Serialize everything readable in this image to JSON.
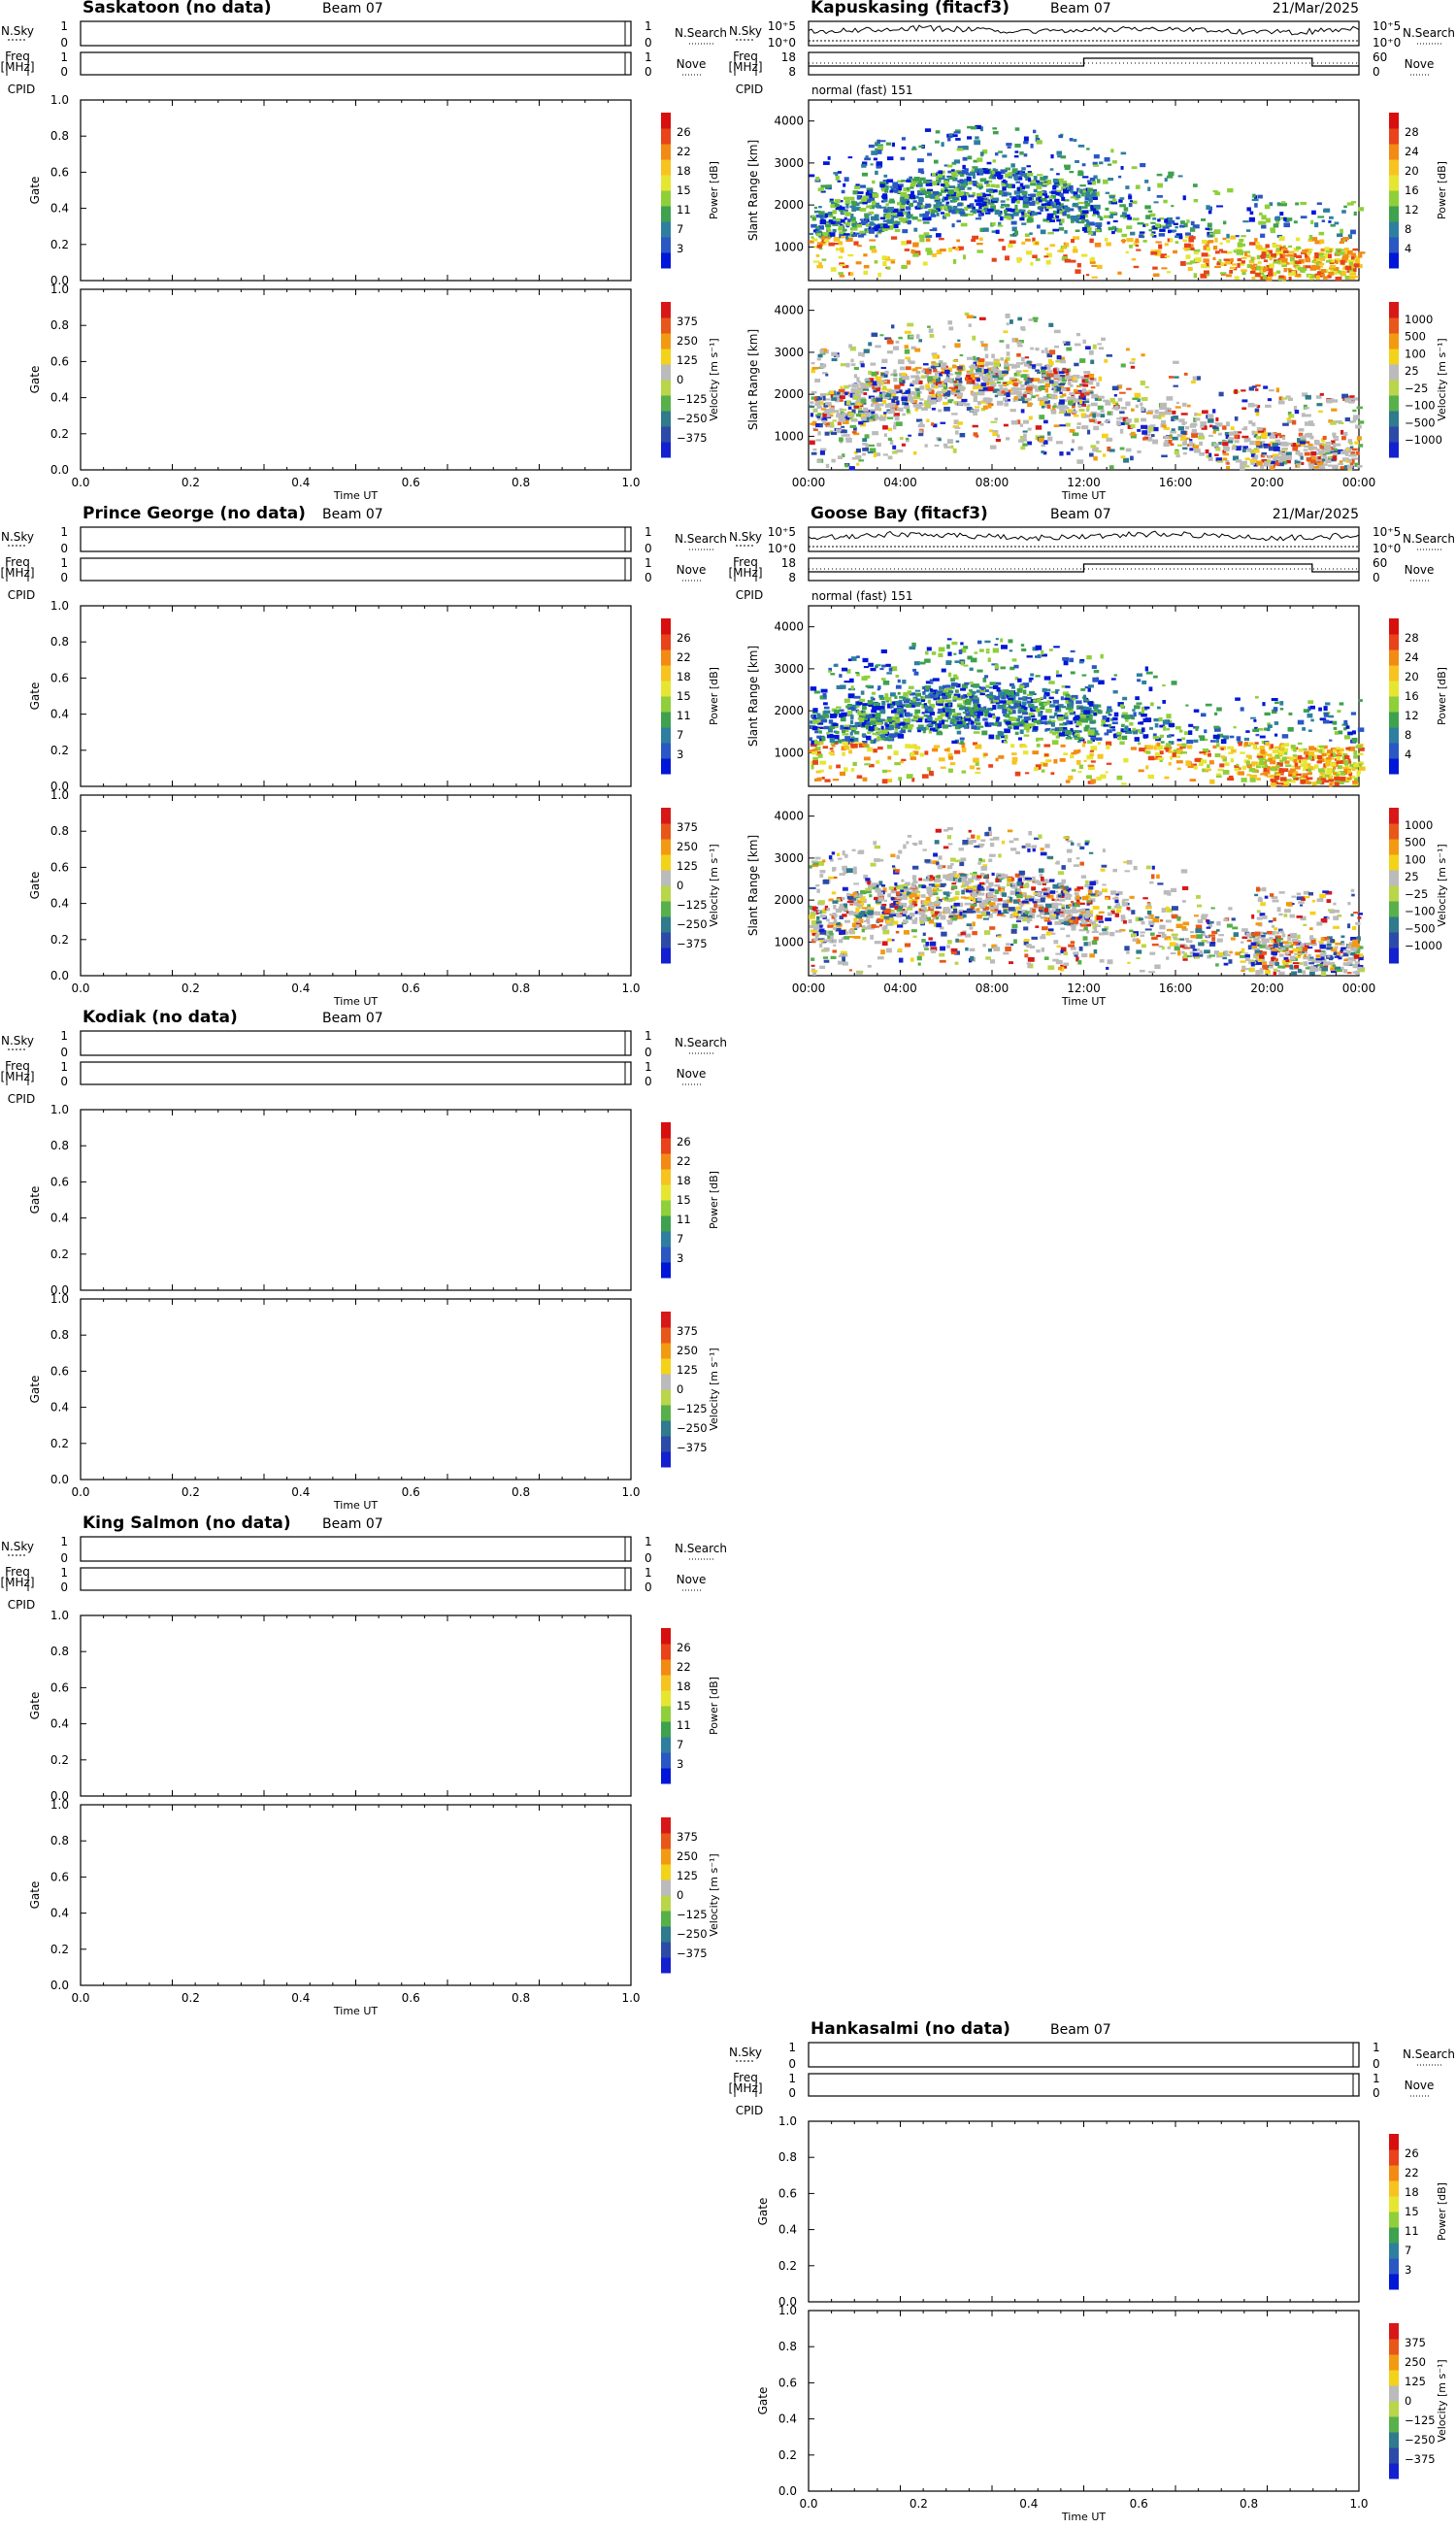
{
  "chart_data": [
    {
      "type": "heatmap",
      "title": "Saskatoon (no data)",
      "beam": "Beam 07",
      "date": "",
      "quickLabel": "",
      "topLeft": [
        "N.Sky",
        "Freq",
        "[MHz]",
        "CPID"
      ],
      "topRight": [
        "N.Search",
        "Nove"
      ],
      "noise": {
        "left": [
          "1",
          "0"
        ],
        "right": [
          "1",
          "0"
        ]
      },
      "freq": {
        "left": [
          "1",
          "0"
        ],
        "right": [
          "1",
          "0"
        ]
      },
      "ylabel": "Gate",
      "yticks": [
        "0.0",
        "0.2",
        "0.4",
        "0.6",
        "0.8",
        "1.0"
      ],
      "xlabel": "Time UT",
      "xticks": [
        "0.0",
        "0.2",
        "0.4",
        "0.6",
        "0.8",
        "1.0"
      ],
      "power": {
        "label": "Power [dB]",
        "ticks": [
          "26",
          "22",
          "18",
          "15",
          "11",
          "7",
          "3"
        ]
      },
      "velocity": {
        "label": "Velocity [m s⁻¹]",
        "ticks": [
          "375",
          "250",
          "125",
          "0",
          "−125",
          "−250",
          "−375"
        ]
      }
    },
    {
      "type": "heatmap",
      "title": "Kapuskasing (fitacf3)",
      "beam": "Beam 07",
      "date": "21/Mar/2025",
      "quickLabel": "normal (fast) 151",
      "topLeft": [
        "N.Sky",
        "Freq",
        "[MHz]",
        "CPID"
      ],
      "topRight": [
        "N.Search",
        "Nove"
      ],
      "noise": {
        "left": [
          "10⁺5",
          "10⁺0"
        ],
        "right": [
          "10⁺5",
          "10⁺0"
        ]
      },
      "freq": {
        "left": [
          "18",
          "8"
        ],
        "right": [
          "60",
          "0"
        ]
      },
      "ylabel": "Slant Range [km]",
      "yticks": [
        "1000",
        "2000",
        "3000",
        "4000"
      ],
      "xlabel": "Time UT",
      "xticks": [
        "00:00",
        "04:00",
        "08:00",
        "12:00",
        "16:00",
        "20:00",
        "00:00"
      ],
      "power": {
        "label": "Power [dB]",
        "ticks": [
          "28",
          "24",
          "20",
          "16",
          "12",
          "8",
          "4"
        ]
      },
      "velocity": {
        "label": "Velocity [m s⁻¹]",
        "ticks": [
          "1000",
          "500",
          "100",
          "25",
          "−25",
          "−100",
          "−500",
          "−1000"
        ]
      }
    },
    {
      "type": "heatmap",
      "title": "Prince George (no data)",
      "beam": "Beam 07",
      "date": "",
      "quickLabel": "",
      "topLeft": [
        "N.Sky",
        "Freq",
        "[MHz]",
        "CPID"
      ],
      "topRight": [
        "N.Search",
        "Nove"
      ],
      "noise": {
        "left": [
          "1",
          "0"
        ],
        "right": [
          "1",
          "0"
        ]
      },
      "freq": {
        "left": [
          "1",
          "0"
        ],
        "right": [
          "1",
          "0"
        ]
      },
      "ylabel": "Gate",
      "yticks": [
        "0.0",
        "0.2",
        "0.4",
        "0.6",
        "0.8",
        "1.0"
      ],
      "xlabel": "Time UT",
      "xticks": [
        "0.0",
        "0.2",
        "0.4",
        "0.6",
        "0.8",
        "1.0"
      ],
      "power": {
        "label": "Power [dB]",
        "ticks": [
          "26",
          "22",
          "18",
          "15",
          "11",
          "7",
          "3"
        ]
      },
      "velocity": {
        "label": "Velocity [m s⁻¹]",
        "ticks": [
          "375",
          "250",
          "125",
          "0",
          "−125",
          "−250",
          "−375"
        ]
      }
    },
    {
      "type": "heatmap",
      "title": "Goose Bay (fitacf3)",
      "beam": "Beam 07",
      "date": "21/Mar/2025",
      "quickLabel": "normal (fast) 151",
      "topLeft": [
        "N.Sky",
        "Freq",
        "[MHz]",
        "CPID"
      ],
      "topRight": [
        "N.Search",
        "Nove"
      ],
      "noise": {
        "left": [
          "10⁺5",
          "10⁺0"
        ],
        "right": [
          "10⁺5",
          "10⁺0"
        ]
      },
      "freq": {
        "left": [
          "18",
          "8"
        ],
        "right": [
          "60",
          "0"
        ]
      },
      "ylabel": "Slant Range [km]",
      "yticks": [
        "1000",
        "2000",
        "3000",
        "4000"
      ],
      "xlabel": "Time UT",
      "xticks": [
        "00:00",
        "04:00",
        "08:00",
        "12:00",
        "16:00",
        "20:00",
        "00:00"
      ],
      "power": {
        "label": "Power [dB]",
        "ticks": [
          "28",
          "24",
          "20",
          "16",
          "12",
          "8",
          "4"
        ]
      },
      "velocity": {
        "label": "Velocity [m s⁻¹]",
        "ticks": [
          "1000",
          "500",
          "100",
          "25",
          "−25",
          "−100",
          "−500",
          "−1000"
        ]
      }
    },
    {
      "type": "heatmap",
      "title": "Kodiak (no data)",
      "beam": "Beam 07",
      "date": "",
      "quickLabel": "",
      "topLeft": [
        "N.Sky",
        "Freq",
        "[MHz]",
        "CPID"
      ],
      "topRight": [
        "N.Search",
        "Nove"
      ],
      "noise": {
        "left": [
          "1",
          "0"
        ],
        "right": [
          "1",
          "0"
        ]
      },
      "freq": {
        "left": [
          "1",
          "0"
        ],
        "right": [
          "1",
          "0"
        ]
      },
      "ylabel": "Gate",
      "yticks": [
        "0.0",
        "0.2",
        "0.4",
        "0.6",
        "0.8",
        "1.0"
      ],
      "xlabel": "Time UT",
      "xticks": [
        "0.0",
        "0.2",
        "0.4",
        "0.6",
        "0.8",
        "1.0"
      ],
      "power": {
        "label": "Power [dB]",
        "ticks": [
          "26",
          "22",
          "18",
          "15",
          "11",
          "7",
          "3"
        ]
      },
      "velocity": {
        "label": "Velocity [m s⁻¹]",
        "ticks": [
          "375",
          "250",
          "125",
          "0",
          "−125",
          "−250",
          "−375"
        ]
      }
    },
    {
      "type": "heatmap",
      "title": "King Salmon (no data)",
      "beam": "Beam 07",
      "date": "",
      "quickLabel": "",
      "topLeft": [
        "N.Sky",
        "Freq",
        "[MHz]",
        "CPID"
      ],
      "topRight": [
        "N.Search",
        "Nove"
      ],
      "noise": {
        "left": [
          "1",
          "0"
        ],
        "right": [
          "1",
          "0"
        ]
      },
      "freq": {
        "left": [
          "1",
          "0"
        ],
        "right": [
          "1",
          "0"
        ]
      },
      "ylabel": "Gate",
      "yticks": [
        "0.0",
        "0.2",
        "0.4",
        "0.6",
        "0.8",
        "1.0"
      ],
      "xlabel": "Time UT",
      "xticks": [
        "0.0",
        "0.2",
        "0.4",
        "0.6",
        "0.8",
        "1.0"
      ],
      "power": {
        "label": "Power [dB]",
        "ticks": [
          "26",
          "22",
          "18",
          "15",
          "11",
          "7",
          "3"
        ]
      },
      "velocity": {
        "label": "Velocity [m s⁻¹]",
        "ticks": [
          "375",
          "250",
          "125",
          "0",
          "−125",
          "−250",
          "−375"
        ]
      }
    },
    {
      "type": "heatmap",
      "title": "Hankasalmi (no data)",
      "beam": "Beam 07",
      "date": "",
      "quickLabel": "",
      "topLeft": [
        "N.Sky",
        "Freq",
        "[MHz]",
        "CPID"
      ],
      "topRight": [
        "N.Search",
        "Nove"
      ],
      "noise": {
        "left": [
          "1",
          "0"
        ],
        "right": [
          "1",
          "0"
        ]
      },
      "freq": {
        "left": [
          "1",
          "0"
        ],
        "right": [
          "1",
          "0"
        ]
      },
      "ylabel": "Gate",
      "yticks": [
        "0.0",
        "0.2",
        "0.4",
        "0.6",
        "0.8",
        "1.0"
      ],
      "xlabel": "Time UT",
      "xticks": [
        "0.0",
        "0.2",
        "0.4",
        "0.6",
        "0.8",
        "1.0"
      ],
      "power": {
        "label": "Power [dB]",
        "ticks": [
          "26",
          "22",
          "18",
          "15",
          "11",
          "7",
          "3"
        ]
      },
      "velocity": {
        "label": "Velocity [m s⁻¹]",
        "ticks": [
          "375",
          "250",
          "125",
          "0",
          "−125",
          "−250",
          "−375"
        ]
      }
    }
  ],
  "colors": {
    "power_scale": [
      "#0016d8",
      "#2a57c4",
      "#2e7f9f",
      "#3ea14e",
      "#8fcf3a",
      "#e6e632",
      "#f7c31f",
      "#f28a14",
      "#e8431a",
      "#d80f0f"
    ],
    "velocity_scale": [
      "#1420d0",
      "#2c4aa8",
      "#2f7a8c",
      "#57b04a",
      "#b9d54a",
      "#bbbbbb",
      "#f3d21a",
      "#f29a12",
      "#e8571a",
      "#d81818"
    ],
    "axes": "#000000"
  }
}
